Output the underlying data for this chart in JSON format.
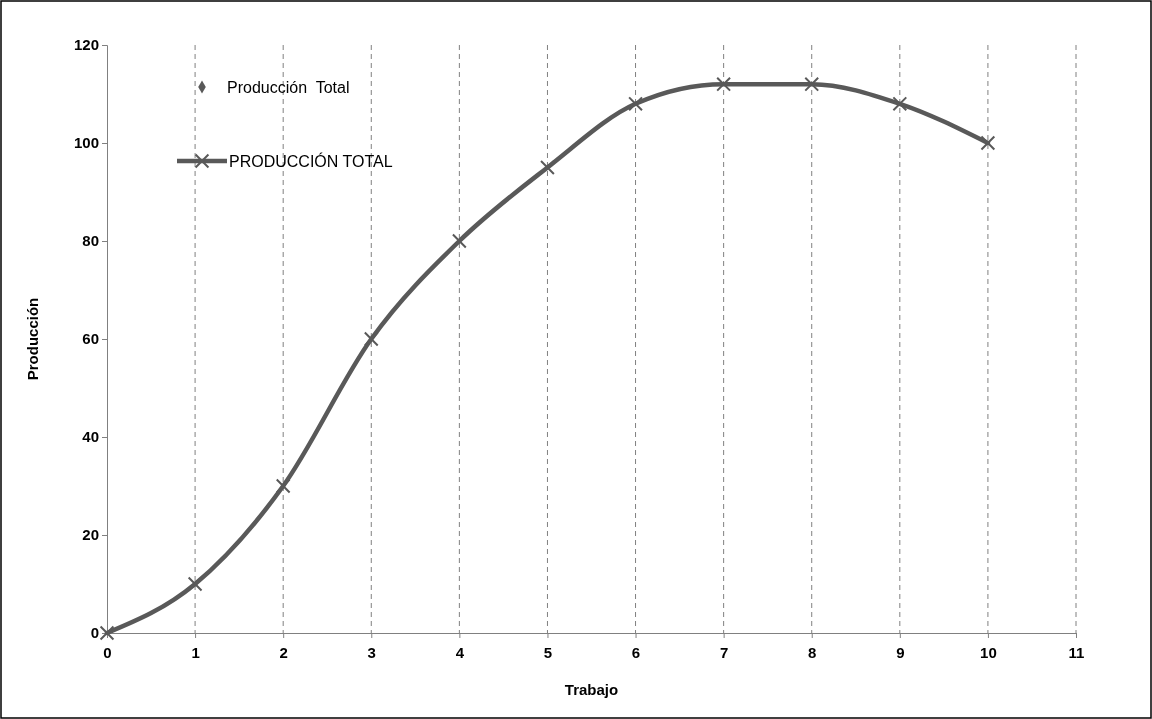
{
  "chart_data": {
    "type": "line",
    "xlabel": "Trabajo",
    "ylabel": "Producción",
    "x": [
      0,
      1,
      2,
      3,
      4,
      5,
      6,
      7,
      8,
      9,
      10
    ],
    "xlim": [
      0,
      11
    ],
    "xticks": [
      0,
      1,
      2,
      3,
      4,
      5,
      6,
      7,
      8,
      9,
      10,
      11
    ],
    "ylim": [
      0,
      120
    ],
    "yticks": [
      0,
      20,
      40,
      60,
      80,
      100,
      120
    ],
    "grid": "x",
    "legend": "top left",
    "series": [
      {
        "name": "Producción  Total",
        "type": "scatter",
        "marker": "diamond",
        "color": "#595959",
        "values": [
          null,
          null,
          null,
          null,
          null,
          null,
          null,
          null,
          null,
          null,
          null
        ]
      },
      {
        "name": "PRODUCCIÓN TOTAL",
        "marker": "cross",
        "color": "#595959",
        "values": [
          0,
          10,
          30,
          60,
          80,
          95,
          108,
          112,
          112,
          108,
          100
        ]
      }
    ]
  }
}
